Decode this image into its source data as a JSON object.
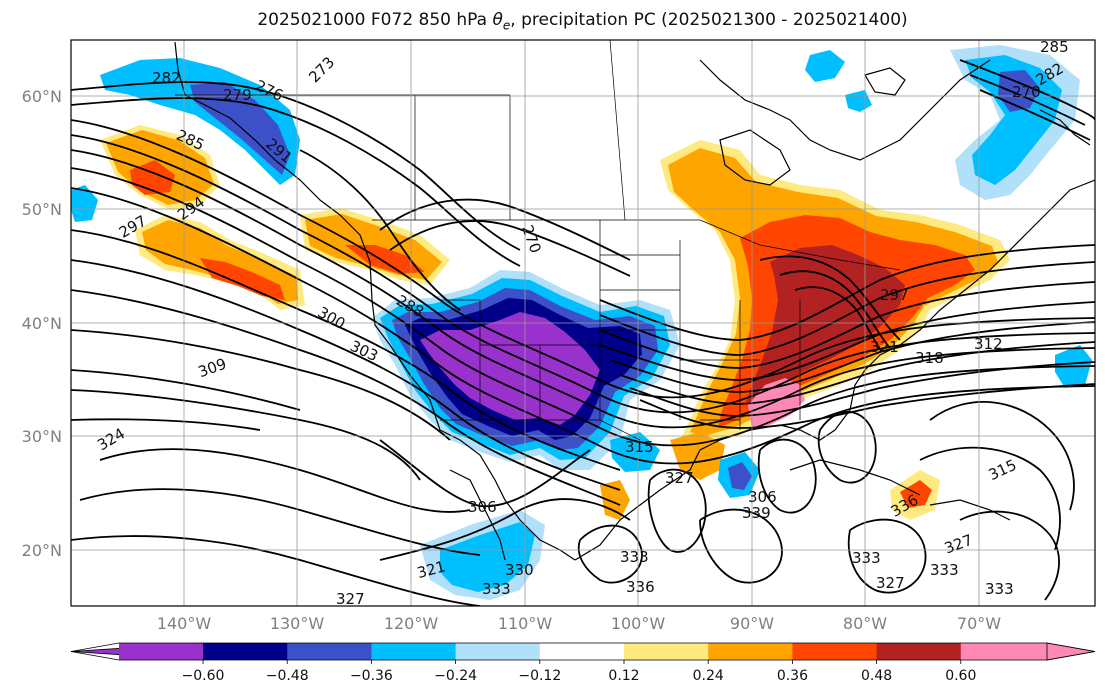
{
  "title": {
    "prefix": "2025021000 F072 850 hPa ",
    "theta": "θ",
    "theta_sub": "e",
    "suffix": ", precipitation PC (2025021300 - 2025021400)"
  },
  "lat_labels": [
    "60°N",
    "50°N",
    "40°N",
    "30°N",
    "20°N"
  ],
  "lon_labels": [
    "140°W",
    "130°W",
    "120°W",
    "110°W",
    "100°W",
    "90°W",
    "80°W",
    "70°W"
  ],
  "colorbar": {
    "ticks": [
      "−0.60",
      "−0.48",
      "−0.36",
      "−0.24",
      "−0.12",
      "0.12",
      "0.24",
      "0.36",
      "0.48",
      "0.60"
    ],
    "colors": [
      "#9932cc",
      "#00008b",
      "#3c50c8",
      "#00bfff",
      "#b0e0fa",
      "#ffffff",
      "#ffea80",
      "#ffa500",
      "#ff4500",
      "#b22222",
      "#ff88b4"
    ]
  },
  "contour_labels": [
    "282",
    "279",
    "276",
    "273",
    "285",
    "285",
    "282",
    "270",
    "291",
    "294",
    "297",
    "270",
    "288",
    "300",
    "303",
    "309",
    "297",
    "306",
    "315",
    "318",
    "312",
    "321",
    "315",
    "324",
    "327",
    "306",
    "321",
    "330",
    "333",
    "327",
    "333",
    "336",
    "339",
    "333",
    "327",
    "336",
    "327",
    "333",
    "333"
  ],
  "colors": {
    "grid": "#999999",
    "coast": "#000000",
    "contour": "#000000"
  }
}
